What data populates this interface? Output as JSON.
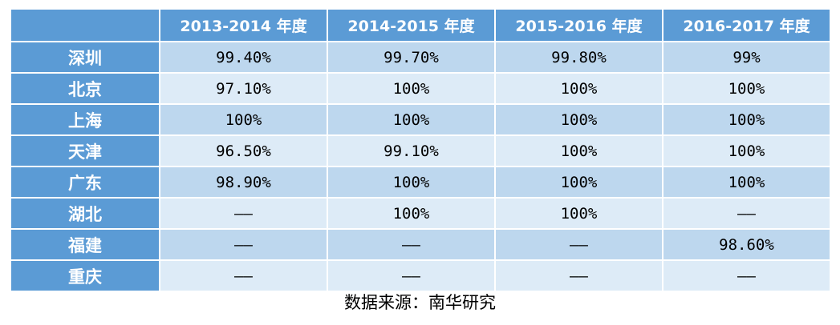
{
  "table": {
    "corner": "",
    "headers": [
      "2013-2014 年度",
      "2014-2015 年度",
      "2015-2016 年度",
      "2016-2017 年度"
    ],
    "rows": [
      {
        "label": "深圳",
        "values": [
          "99.40%",
          "99.70%",
          "99.80%",
          "99%"
        ]
      },
      {
        "label": "北京",
        "values": [
          "97.10%",
          "100%",
          "100%",
          "100%"
        ]
      },
      {
        "label": "上海",
        "values": [
          "100%",
          "100%",
          "100%",
          "100%"
        ]
      },
      {
        "label": "天津",
        "values": [
          "96.50%",
          "99.10%",
          "100%",
          "100%"
        ]
      },
      {
        "label": "广东",
        "values": [
          "98.90%",
          "100%",
          "100%",
          "100%"
        ]
      },
      {
        "label": "湖北",
        "values": [
          "——",
          "100%",
          "100%",
          "——"
        ]
      },
      {
        "label": "福建",
        "values": [
          "——",
          "——",
          "——",
          "98.60%"
        ]
      },
      {
        "label": "重庆",
        "values": [
          "——",
          "——",
          "——",
          "——"
        ]
      }
    ],
    "colors": {
      "header_bg": "#5b9bd5",
      "row_dark": "#bdd7ee",
      "row_light": "#ddebf7",
      "header_text": "#ffffff"
    }
  },
  "source": "数据来源：南华研究"
}
